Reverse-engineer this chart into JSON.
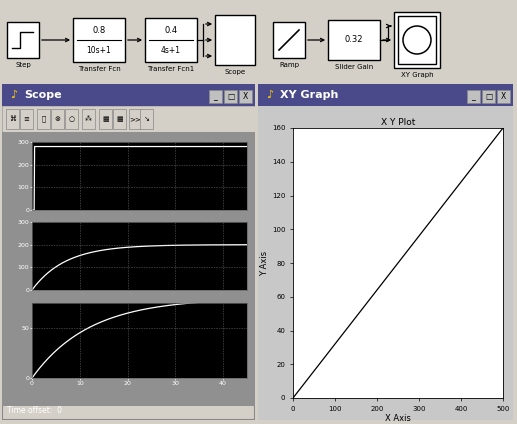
{
  "fig_width": 5.17,
  "fig_height": 4.24,
  "dpi": 100,
  "bg_color": "#d4d0c8",
  "scope_window": {
    "title": "Scope",
    "footer": "Time offset:  0",
    "plots": [
      {
        "ylim": [
          0,
          300
        ],
        "yticks": [
          0,
          100,
          200,
          300
        ],
        "type": "step_flat",
        "yval": 280
      },
      {
        "ylim": [
          0,
          300
        ],
        "yticks": [
          0,
          100,
          200,
          300
        ],
        "type": "step_rise",
        "yval": 200,
        "tau": 7.0
      },
      {
        "ylim": [
          0,
          75
        ],
        "yticks": [
          0,
          50
        ],
        "type": "step_slow",
        "yval": 80,
        "tau": 12.0
      }
    ],
    "xlim": [
      0,
      45
    ],
    "xticks": [
      0,
      10,
      20,
      30,
      40
    ]
  },
  "xy_window": {
    "title": "XY Graph",
    "plot_title": "X Y Plot",
    "xlim": [
      0,
      500
    ],
    "ylim": [
      0,
      160
    ],
    "xlabel": "X Axis",
    "ylabel": "Y Axis",
    "xticks": [
      0,
      100,
      200,
      300,
      400,
      500
    ],
    "yticks": [
      0,
      20,
      40,
      60,
      80,
      100,
      120,
      140,
      160
    ],
    "slope": 0.32
  }
}
